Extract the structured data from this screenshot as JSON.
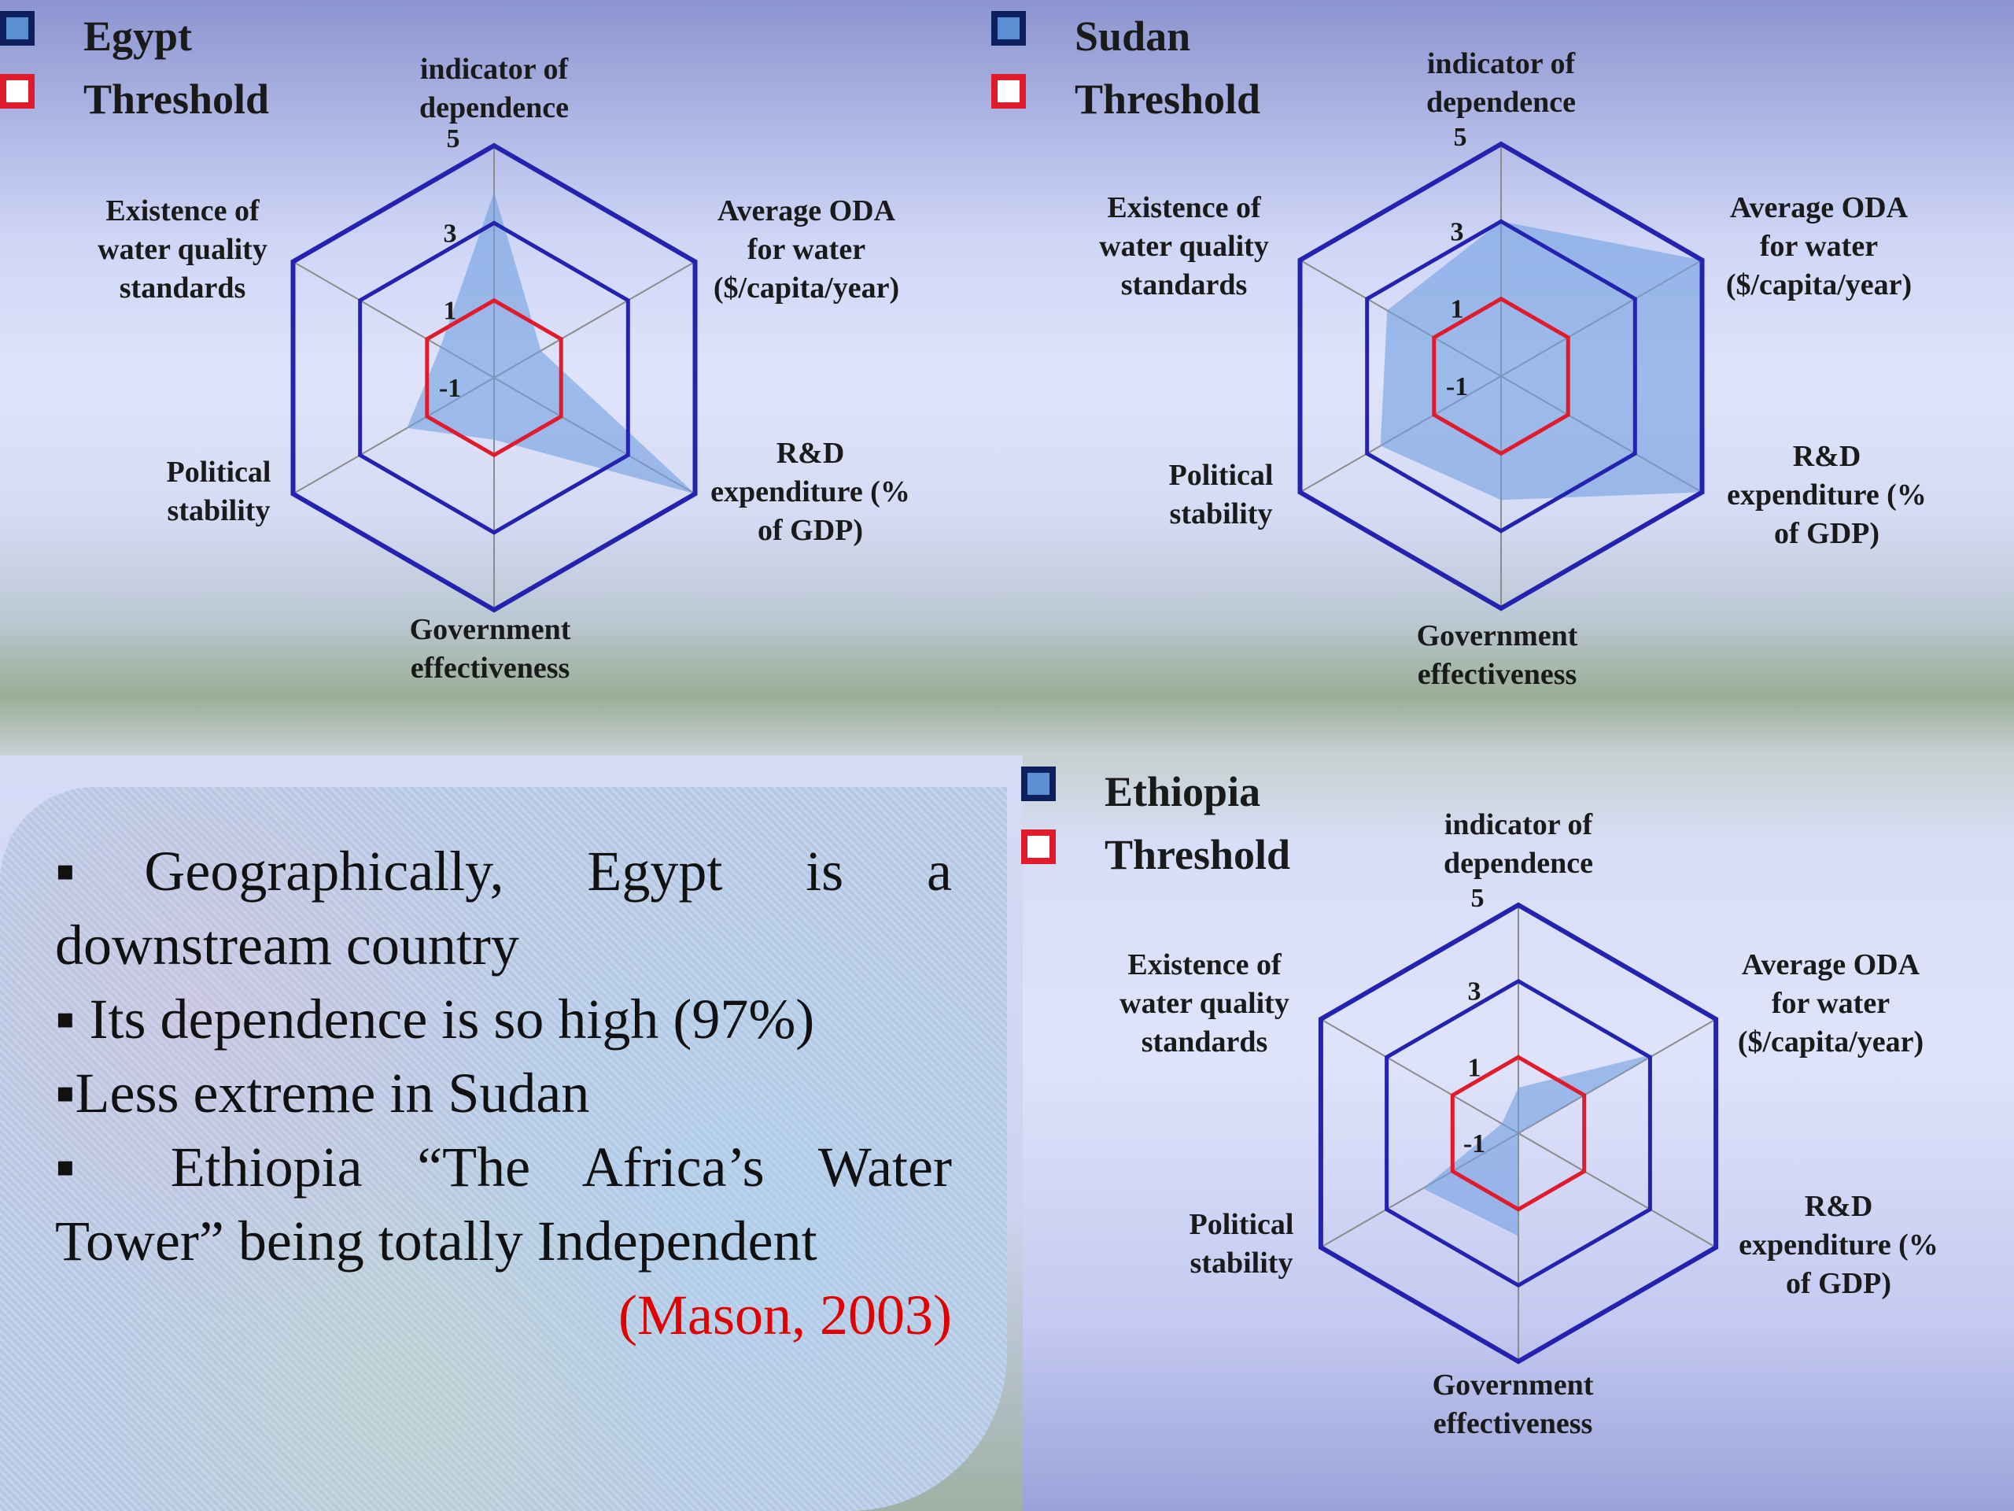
{
  "panel": {
    "line1": "▪Geographically, Egypt is a",
    "line2": "downstream country",
    "line3": "▪ Its dependence is so high (97%)",
    "line4": "▪Less extreme in Sudan",
    "line5": "▪ Ethiopia “The Africa’s Water",
    "line6": "Tower” being totally Independent",
    "citation": "(Mason, 2003)"
  },
  "colors": {
    "series_fill": "#6f9ee0",
    "series_outline": "#1f3f8f",
    "threshold": "#e01c2c",
    "rings": "#2323b0",
    "spokes": "#8c8c8c"
  },
  "chart_data": [
    {
      "type": "radar",
      "axes": [
        "indicator of dependence",
        "Average ODA for water ($/capita/year)",
        "R&D expenditure (% of GDP)",
        "Government effectiveness",
        "Political stability",
        "Existence of water quality standards"
      ],
      "axis_label_lines": [
        [
          "indicator of",
          "dependence"
        ],
        [
          "Average ODA",
          "for water",
          "($/capita/year)"
        ],
        [
          "R&D",
          "expenditure (%",
          "of GDP)"
        ],
        [
          "Government",
          "effectiveness"
        ],
        [
          "Political",
          "stability"
        ],
        [
          "Existence of",
          "water quality",
          "standards"
        ]
      ],
      "rlim": [
        -1,
        5
      ],
      "ticks": [
        5,
        3,
        1,
        -1
      ],
      "series": [
        {
          "name": "Egypt",
          "values": [
            3.8,
            0.4,
            5,
            0.6,
            1.6,
            0.6
          ]
        },
        {
          "name": "Threshold",
          "values": [
            1,
            1,
            1,
            1,
            1,
            1
          ]
        }
      ],
      "legend": "top-left"
    },
    {
      "type": "radar",
      "axes": [
        "indicator of dependence",
        "Average ODA for water ($/capita/year)",
        "R&D expenditure (% of GDP)",
        "Government effectiveness",
        "Political stability",
        "Existence of water quality standards"
      ],
      "axis_label_lines": [
        [
          "indicator of",
          "dependence"
        ],
        [
          "Average ODA",
          "for water",
          "($/capita/year)"
        ],
        [
          "R&D",
          "expenditure (%",
          "of GDP)"
        ],
        [
          "Government",
          "effectiveness"
        ],
        [
          "Political",
          "stability"
        ],
        [
          "Existence of",
          "water quality",
          "standards"
        ]
      ],
      "rlim": [
        -1,
        5
      ],
      "ticks": [
        5,
        3,
        1,
        -1
      ],
      "series": [
        {
          "name": "Sudan",
          "values": [
            3,
            5,
            5,
            2.2,
            2.6,
            2.4
          ]
        },
        {
          "name": "Threshold",
          "values": [
            1,
            1,
            1,
            1,
            1,
            1
          ]
        }
      ],
      "legend": "top-left"
    },
    {
      "type": "radar",
      "axes": [
        "indicator of dependence",
        "Average ODA for water ($/capita/year)",
        "R&D expenditure (% of GDP)",
        "Government effectiveness",
        "Political stability",
        "Existence of water quality standards"
      ],
      "axis_label_lines": [
        [
          "indicator of",
          "dependence"
        ],
        [
          "Average ODA",
          "for water",
          "($/capita/year)"
        ],
        [
          "R&D",
          "expenditure (%",
          "of GDP)"
        ],
        [
          "Government",
          "effectiveness"
        ],
        [
          "Political",
          "stability"
        ],
        [
          "Existence of",
          "water quality",
          "standards"
        ]
      ],
      "rlim": [
        -1,
        5
      ],
      "ticks": [
        5,
        3,
        1,
        -1
      ],
      "series": [
        {
          "name": "Ethiopia",
          "values": [
            0.2,
            3.2,
            -1,
            1.7,
            1.9,
            -0.5
          ]
        },
        {
          "name": "Threshold",
          "values": [
            1,
            1,
            1,
            1,
            1,
            1
          ]
        }
      ],
      "legend": "top-left"
    }
  ]
}
